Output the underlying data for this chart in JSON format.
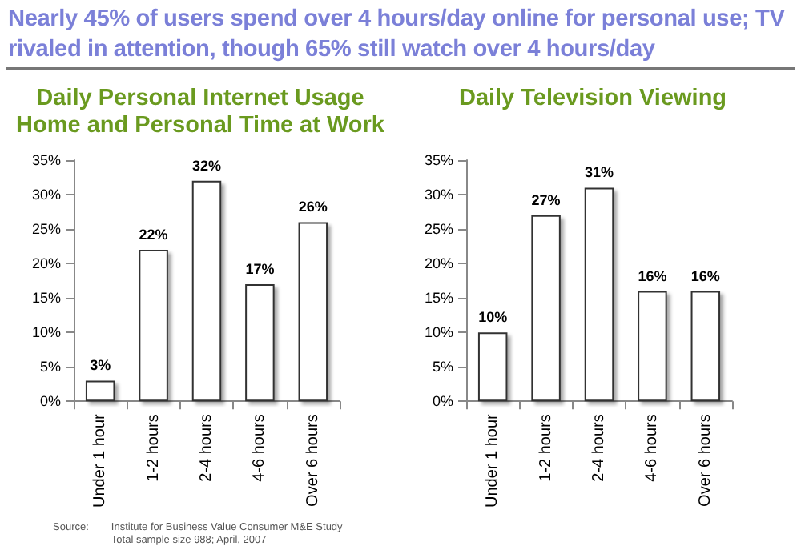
{
  "chart_data": [
    {
      "type": "bar",
      "title": "Daily Personal Internet Usage\nHome and Personal Time at Work",
      "categories": [
        "Under 1 hour",
        "1-2 hours",
        "2-4 hours",
        "4-6 hours",
        "Over 6 hours"
      ],
      "values": [
        3,
        22,
        32,
        17,
        26
      ],
      "color": "#ffffff",
      "value_labels": [
        "3%",
        "22%",
        "32%",
        "17%",
        "26%"
      ],
      "ylim": [
        0,
        35
      ],
      "yticks": [
        {
          "value": 0,
          "label": "0%"
        },
        {
          "value": 5,
          "label": "5%"
        },
        {
          "value": 10,
          "label": "10%"
        },
        {
          "value": 15,
          "label": "15%"
        },
        {
          "value": 20,
          "label": "20%"
        },
        {
          "value": 25,
          "label": "25%"
        },
        {
          "value": 30,
          "label": "30%"
        },
        {
          "value": 35,
          "label": "35%"
        }
      ],
      "annotations": [
        "Nearly 45% of users spend over 4 hours/day online for personal use; TV rivaled in attention, though 65% still watch over 4 hours/day",
        "Source:",
        "Institute for Business Value Consumer M&E Study\nTotal sample size 988; April, 2007"
      ]
    },
    {
      "type": "bar",
      "title": "Daily Television Viewing",
      "categories": [
        "Under 1 hour",
        "1-2 hours",
        "2-4 hours",
        "4-6 hours",
        "Over 6 hours"
      ],
      "values": [
        10,
        27,
        31,
        16,
        16
      ],
      "color": "#ffffff",
      "value_labels": [
        "10%",
        "27%",
        "31%",
        "16%",
        "16%"
      ],
      "ylim": [
        0,
        35
      ],
      "yticks": [
        {
          "value": 0,
          "label": "0%"
        },
        {
          "value": 5,
          "label": "5%"
        },
        {
          "value": 10,
          "label": "10%"
        },
        {
          "value": 15,
          "label": "15%"
        },
        {
          "value": 20,
          "label": "20%"
        },
        {
          "value": 25,
          "label": "25%"
        },
        {
          "value": 30,
          "label": "30%"
        },
        {
          "value": 35,
          "label": "35%"
        }
      ]
    }
  ]
}
